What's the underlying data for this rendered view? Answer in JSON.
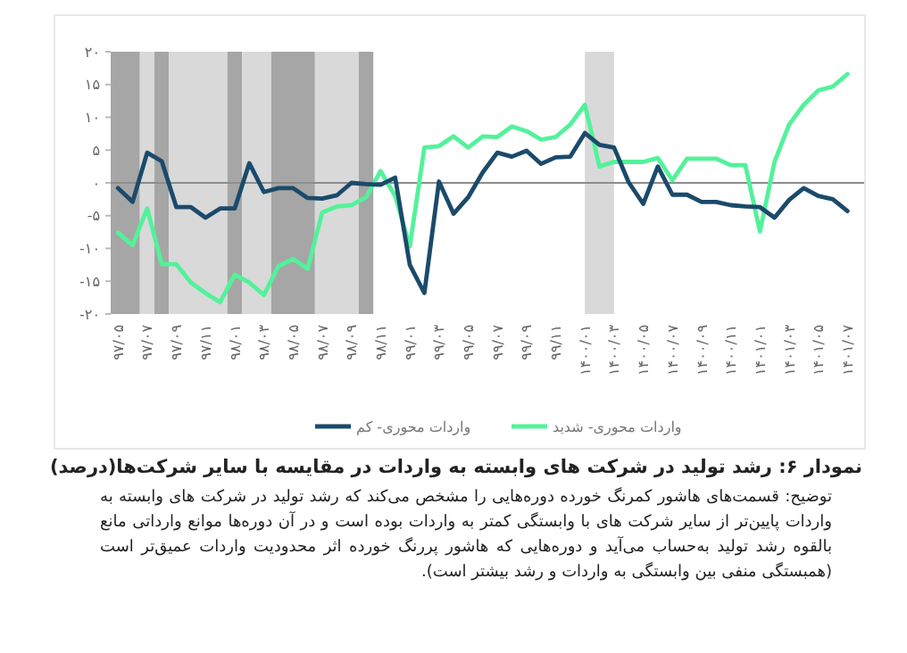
{
  "chart_data": {
    "type": "line",
    "title": "نمودار ۶: رشد تولید در شرکت های وابسته به واردات در مقایسه با سایر شرکت‌ها(درصد)",
    "annotations": [
      "توضیح: قسمت‌های هاشور کمرنگ خورده دوره‌هایی را مشخص می‌کند که رشد تولید در شرکت های وابسته به واردات پایین‌تر از سایر شرکت های با وابستگی کمتر به واردات بوده است و در آن دوره‌ها موانع وارداتی مانع بالقوه رشد تولید به‌حساب می‌آید و دوره‌هایی که هاشور پررنگ خورده اثر محدودیت واردات عمیق‌تر است (همبستگی منفی بین وابستگی به واردات و رشد بیشتر است)."
    ],
    "categories": [
      "۹۷/۰۵",
      null,
      "۹۷/۰۷",
      null,
      "۹۷/۰۹",
      null,
      "۹۷/۱۱",
      null,
      "۹۸/۰۱",
      null,
      "۹۸/۰۳",
      null,
      "۹۸/۰۵",
      null,
      "۹۸/۰۷",
      null,
      "۹۸/۰۹",
      null,
      "۹۸/۱۱",
      null,
      "۹۹/۰۱",
      null,
      "۹۹/۰۳",
      null,
      "۹۹/۰۵",
      null,
      "۹۹/۰۷",
      null,
      "۹۹/۰۹",
      null,
      "۹۹/۱۱",
      null,
      "۱۴۰۰/۰۱",
      null,
      "۱۴۰۰/۰۳",
      null,
      "۱۴۰۰/۰۵",
      null,
      "۱۴۰۰/۰۷",
      null,
      "۱۴۰۰/۰۹",
      null,
      "۱۴۰۰/۱۱",
      null,
      "۱۴۰۱/۰۱",
      null,
      "۱۴۰۱/۰۳",
      null,
      "۱۴۰۱/۰۵",
      null,
      "۱۴۰۱/۰۷"
    ],
    "series": [
      {
        "name": "واردات محوری- شدید",
        "color": "#52f29a",
        "values": [
          -7.6,
          -9.5,
          -3.9,
          -12.4,
          -12.4,
          -15.2,
          -16.8,
          -18.2,
          -14.0,
          -15.2,
          -17.1,
          -12.7,
          -11.6,
          -13.1,
          -4.5,
          -3.6,
          -3.4,
          -2.2,
          1.8,
          -2,
          -9.7,
          5.4,
          5.6,
          7.1,
          5.4,
          7.1,
          7.0,
          8.6,
          7.9,
          6.6,
          7.0,
          8.9,
          11.9,
          2.5,
          3.2,
          3.2,
          3.2,
          3.8,
          0.4,
          3.7,
          3.7,
          3.7,
          2.7,
          2.7,
          -7.4,
          3.2,
          8.9,
          11.9,
          14.1,
          14.7,
          16.6
        ]
      },
      {
        "name": "واردات محوری- کم",
        "color": "#1b4a6b",
        "values": [
          -0.8,
          -2.9,
          4.6,
          3.3,
          -3.7,
          -3.7,
          -5.3,
          -3.9,
          -3.9,
          3.0,
          -1.4,
          -0.8,
          -0.8,
          -2.3,
          -2.4,
          -1.9,
          0,
          -0.2,
          -0.3,
          0.8,
          -12.5,
          -16.8,
          0.2,
          -4.7,
          -2.2,
          1.6,
          4.6,
          4.0,
          4.9,
          2.9,
          3.9,
          4.0,
          7.6,
          5.8,
          5.4,
          0.1,
          -3.2,
          2.5,
          -1.8,
          -1.8,
          -2.9,
          -2.9,
          -3.4,
          -3.6,
          -3.7,
          -5.3,
          -2.6,
          -0.8,
          -2.0,
          -2.5,
          -4.3
        ]
      }
    ],
    "ylim": [
      -20,
      20
    ],
    "yticks": [
      {
        "value": 20,
        "label": "۲۰"
      },
      {
        "value": 15,
        "label": "۱۵"
      },
      {
        "value": 10,
        "label": "۱۰"
      },
      {
        "value": 5,
        "label": "۵"
      },
      {
        "value": 0,
        "label": "۰"
      },
      {
        "value": -5,
        "label": "-۵"
      },
      {
        "value": -10,
        "label": "-۱۰"
      },
      {
        "value": -15,
        "label": "-۱۵"
      },
      {
        "value": -20,
        "label": "-۲۰"
      }
    ],
    "ref_lines": [
      {
        "axis": "y",
        "value": 0,
        "color": "#8c8c8c"
      }
    ],
    "bands": [
      {
        "axis": "x",
        "from": "۱۴۰۰/۰۱",
        "to": "۱۴۰۰/۰۳",
        "color": "#d9d9d9"
      }
    ],
    "legend": "bottom",
    "grid": false,
    "marker": "none",
    "line_style": "solid"
  }
}
